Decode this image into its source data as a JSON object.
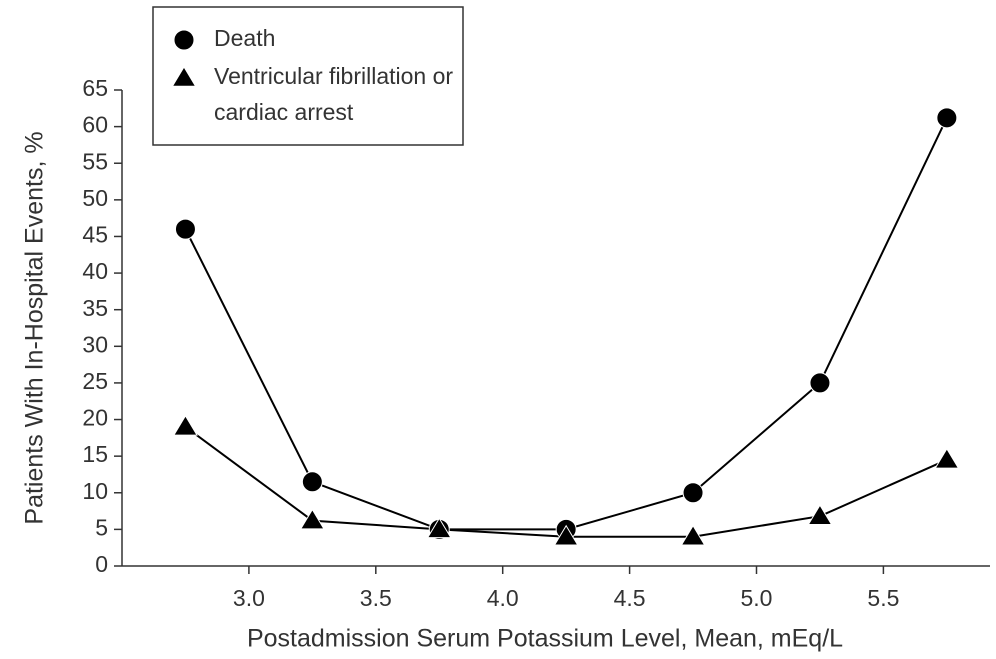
{
  "chart_data": {
    "type": "line",
    "x_label": "Postadmission Serum Potassium Level, Mean, mEq/L",
    "y_label": "Patients With In-Hospital Events, %",
    "x": [
      2.75,
      3.25,
      3.75,
      4.25,
      4.75,
      5.25,
      5.75
    ],
    "series": [
      {
        "name": "Death",
        "color": "#000000",
        "marker": "circle",
        "values": [
          46,
          11.5,
          5,
          5,
          10,
          25,
          61.2
        ]
      },
      {
        "name": "Ventricular fibrillation or cardiac arrest",
        "color": "#000000",
        "marker": "triangle",
        "values": [
          19,
          6.2,
          5,
          4,
          4,
          6.8,
          14.5
        ]
      }
    ],
    "xlim": [
      2.5,
      5.92
    ],
    "xticks": [
      {
        "value": 3,
        "label": "3.0"
      },
      3.5,
      {
        "value": 4,
        "label": "4.0"
      },
      4.5,
      {
        "value": 5,
        "label": "5.0"
      },
      5.5
    ],
    "ylim": [
      0,
      65
    ],
    "yticks": [
      0,
      5,
      10,
      15,
      20,
      25,
      30,
      35,
      40,
      45,
      50,
      55,
      60,
      65
    ],
    "legend": "upper left",
    "grid": false
  }
}
